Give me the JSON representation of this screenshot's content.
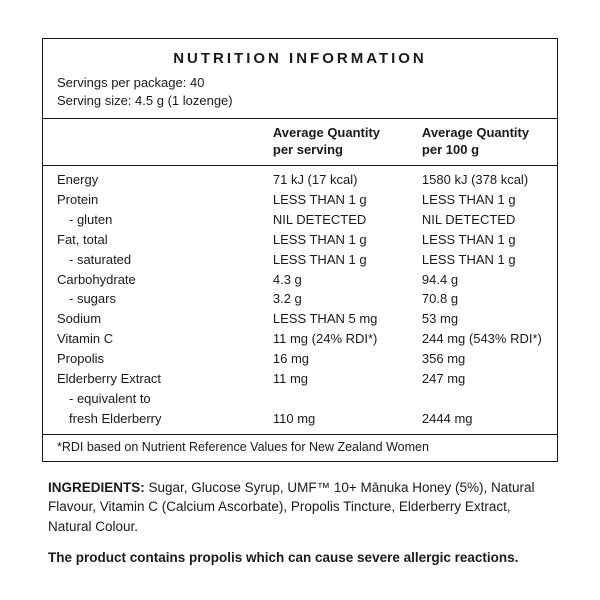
{
  "title": "NUTRITION INFORMATION",
  "meta": {
    "servings_per_package_label": "Servings per package:",
    "servings_per_package_value": "40",
    "serving_size_label": "Serving size:",
    "serving_size_value": "4.5 g (1 lozenge)"
  },
  "columns": {
    "per_serving_l1": "Average Quantity",
    "per_serving_l2": "per serving",
    "per_100g_l1": "Average Quantity",
    "per_100g_l2": "per 100 g"
  },
  "rows": [
    {
      "label": "Energy",
      "serving": "71 kJ (17 kcal)",
      "per100g": "1580 kJ (378  kcal)",
      "indent": false
    },
    {
      "label": "Protein",
      "serving": "LESS THAN 1 g",
      "per100g": "LESS THAN 1 g",
      "indent": false
    },
    {
      "label": "- gluten",
      "serving": "NIL DETECTED",
      "per100g": "NIL DETECTED",
      "indent": true
    },
    {
      "label": "Fat, total",
      "serving": "LESS THAN 1 g",
      "per100g": "LESS THAN 1 g",
      "indent": false
    },
    {
      "label": "- saturated",
      "serving": "LESS THAN 1 g",
      "per100g": "LESS THAN 1 g",
      "indent": true
    },
    {
      "label": "Carbohydrate",
      "serving": "4.3 g",
      "per100g": "94.4 g",
      "indent": false
    },
    {
      "label": "- sugars",
      "serving": "3.2 g",
      "per100g": "70.8 g",
      "indent": true
    },
    {
      "label": "Sodium",
      "serving": "LESS THAN 5 mg",
      "per100g": "53 mg",
      "indent": false
    },
    {
      "label": "Vitamin C",
      "serving": "11 mg (24% RDI*)",
      "per100g": "244 mg (543% RDI*)",
      "indent": false
    },
    {
      "label": "Propolis",
      "serving": "16 mg",
      "per100g": "356 mg",
      "indent": false
    },
    {
      "label": "Elderberry Extract",
      "serving": "11 mg",
      "per100g": "247 mg",
      "indent": false
    },
    {
      "label": "- equivalent to",
      "serving": "",
      "per100g": "",
      "indent": true
    },
    {
      "label": "fresh Elderberry",
      "serving": "110 mg",
      "per100g": "2444 mg",
      "indent": true
    }
  ],
  "footnote": "*RDI based on Nutrient Reference Values for New Zealand Women",
  "ingredients_label": "INGREDIENTS:",
  "ingredients_text": " Sugar, Glucose Syrup, UMF™ 10+ Mānuka Honey (5%), Natural Flavour, Vitamin C (Calcium Ascorbate), Propolis Tincture, Elderberry Extract, Natural Colour.",
  "warning": "The product contains propolis which can cause severe allergic reactions.",
  "colors": {
    "background": "#ffffff",
    "text": "#1a1a1a",
    "border": "#1a1a1a"
  }
}
